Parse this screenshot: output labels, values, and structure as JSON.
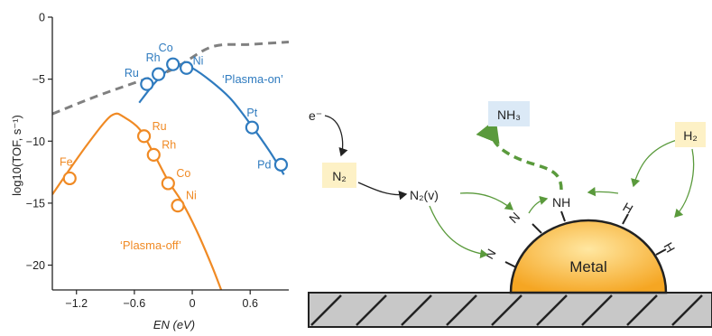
{
  "chart_data": {
    "type": "line",
    "ylabel": "log10(TOF, s⁻¹)",
    "xlabel": "EN (eV)",
    "xlim": [
      -1.45,
      1.0
    ],
    "ylim": [
      -22,
      0
    ],
    "xticks": [
      -1.2,
      -0.6,
      0,
      0.6
    ],
    "xtick_labels": [
      "−1.2",
      "−0.6",
      "0",
      "0.6"
    ],
    "yticks": [
      0,
      -5,
      -10,
      -15,
      -20
    ],
    "ytick_labels": [
      "0",
      "−5",
      "−10",
      "−15",
      "−20"
    ],
    "series": [
      {
        "name": "‘Plasma-on’",
        "color": "#2f7bbf",
        "style": "solid",
        "curve": [
          [
            -0.55,
            -6.9
          ],
          [
            -0.4,
            -5.4
          ],
          [
            -0.3,
            -4.6
          ],
          [
            -0.2,
            -4.0
          ],
          [
            -0.12,
            -3.8
          ],
          [
            0,
            -4.1
          ],
          [
            0.2,
            -5.2
          ],
          [
            0.4,
            -6.6
          ],
          [
            0.6,
            -8.6
          ],
          [
            0.8,
            -10.8
          ],
          [
            0.95,
            -12.7
          ]
        ],
        "points": [
          {
            "label": "Ru",
            "x": -0.47,
            "y": -5.4
          },
          {
            "label": "Rh",
            "x": -0.35,
            "y": -4.6
          },
          {
            "label": "Co",
            "x": -0.2,
            "y": -3.8
          },
          {
            "label": "Ni",
            "x": -0.06,
            "y": -4.1
          },
          {
            "label": "Pt",
            "x": 0.62,
            "y": -8.9
          },
          {
            "label": "Pd",
            "x": 0.92,
            "y": -11.9
          }
        ]
      },
      {
        "name": "‘Plasma-off’",
        "color": "#f08a24",
        "style": "solid",
        "curve": [
          [
            -1.45,
            -14.3
          ],
          [
            -1.3,
            -12.6
          ],
          [
            -1.1,
            -10.4
          ],
          [
            -0.9,
            -8.4
          ],
          [
            -0.8,
            -7.8
          ],
          [
            -0.72,
            -8.0
          ],
          [
            -0.55,
            -9.0
          ],
          [
            -0.4,
            -11.0
          ],
          [
            -0.25,
            -13.2
          ],
          [
            -0.1,
            -15.0
          ],
          [
            0.05,
            -17.3
          ],
          [
            0.2,
            -20.0
          ],
          [
            0.3,
            -22.0
          ]
        ],
        "points": [
          {
            "label": "Fe",
            "x": -1.27,
            "y": -13.0
          },
          {
            "label": "Ru",
            "x": -0.5,
            "y": -9.6
          },
          {
            "label": "Rh",
            "x": -0.4,
            "y": -11.1
          },
          {
            "label": "Co",
            "x": -0.25,
            "y": -13.4
          },
          {
            "label": "Ni",
            "x": -0.15,
            "y": -15.2
          }
        ]
      },
      {
        "color": "#808080",
        "style": "dashed",
        "curve": [
          [
            -1.45,
            -7.8
          ],
          [
            -1.0,
            -6.4
          ],
          [
            -0.6,
            -5.3
          ],
          [
            -0.2,
            -4.2
          ],
          [
            0.2,
            -2.4
          ],
          [
            0.6,
            -2.2
          ],
          [
            1.0,
            -2.0
          ]
        ]
      }
    ],
    "annotations": [
      {
        "text": "‘Plasma-on’",
        "color": "#2f7bbf"
      },
      {
        "text": "‘Plasma-off’",
        "color": "#f08a24"
      }
    ]
  },
  "diagram": {
    "electron": "e⁻",
    "n2": "N₂",
    "n2v": "N₂(v)",
    "nh3": "NH₃",
    "h2": "H₂",
    "metal": "Metal",
    "surface_labels": [
      {
        "id": "n-left",
        "text": "N"
      },
      {
        "id": "n-top",
        "text": "N"
      },
      {
        "id": "nh",
        "text": "NH"
      },
      {
        "id": "h1",
        "text": "H"
      },
      {
        "id": "h2",
        "text": "H"
      }
    ],
    "colors": {
      "metal_fill": "#f5a623",
      "metal_highlight": "#ffe7a1",
      "label_box": "#fdf1c6",
      "nh3_box": "#dbe9f6",
      "green_arrow": "#5a9a3c",
      "ground": "#c8c8c8"
    }
  }
}
